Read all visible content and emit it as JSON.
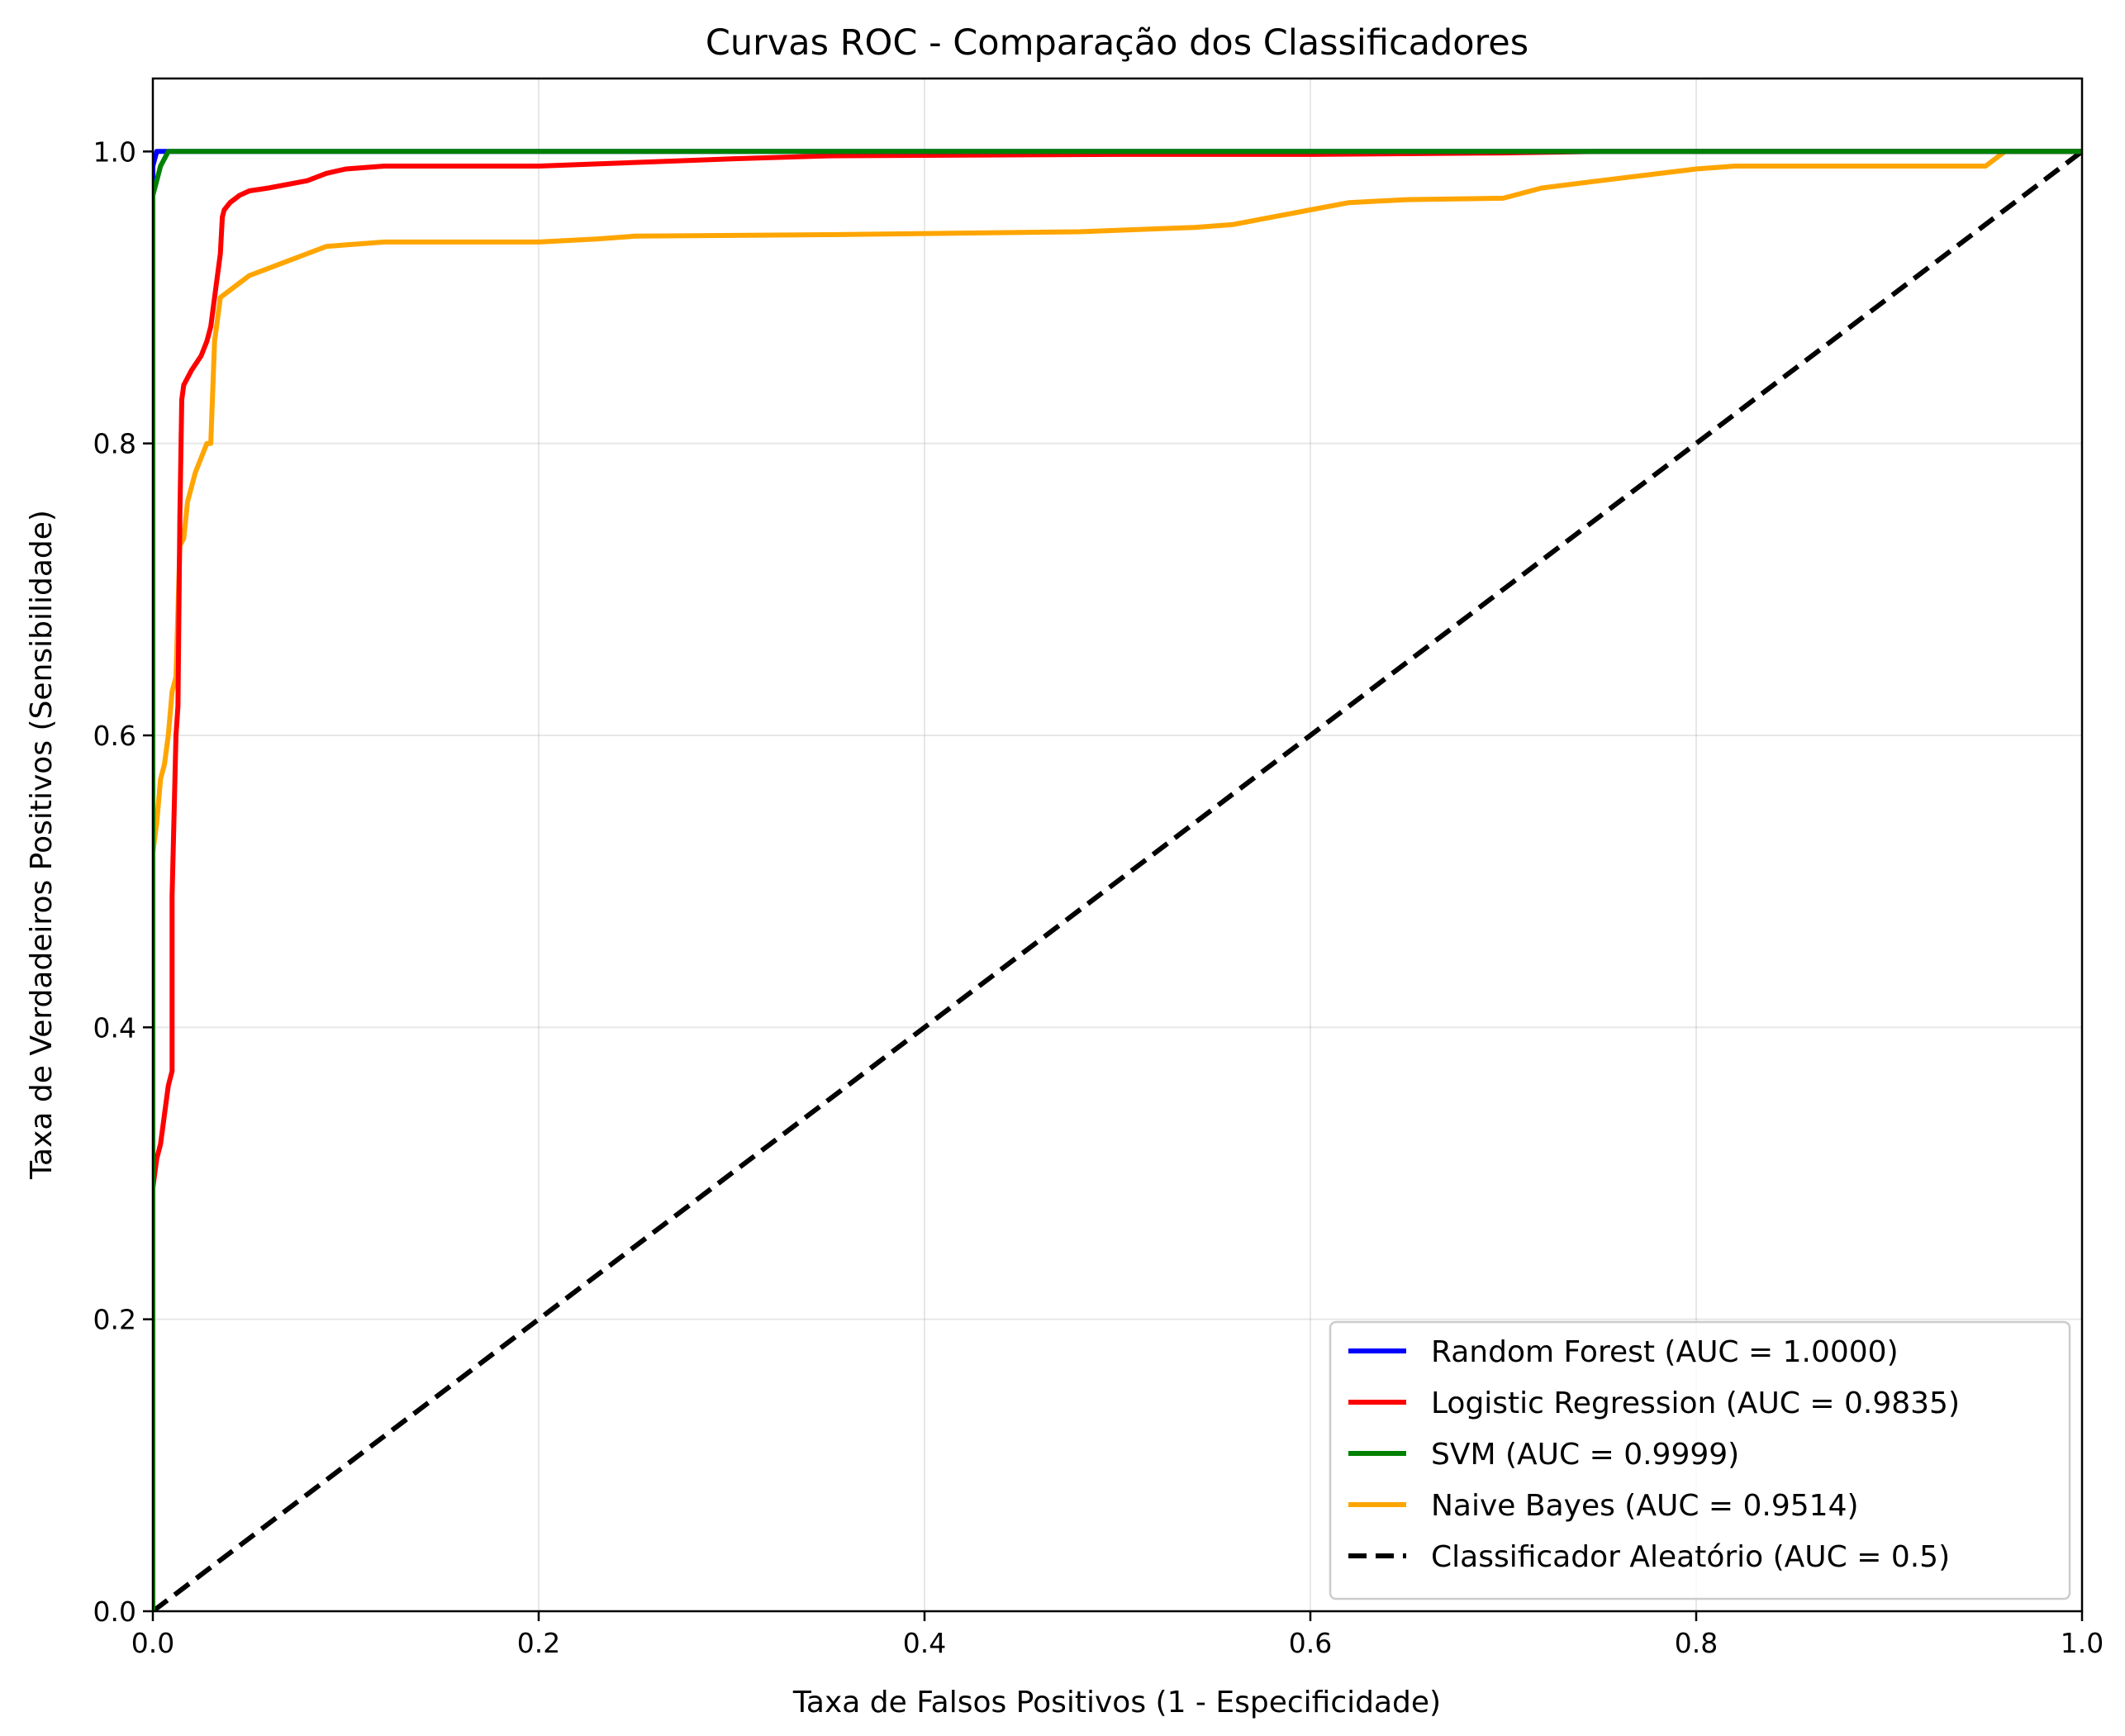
{
  "chart_data": {
    "type": "line",
    "title": "Curvas ROC - Comparação dos Classificadores",
    "xlabel": "Taxa de Falsos Positivos (1 - Especificidade)",
    "ylabel": "Taxa de Verdadeiros Positivos (Sensibilidade)",
    "xlim": [
      0.0,
      1.0
    ],
    "ylim": [
      0.0,
      1.05
    ],
    "xticks": [
      "0.0",
      "0.2",
      "0.4",
      "0.6",
      "0.8",
      "1.0"
    ],
    "yticks": [
      "0.0",
      "0.2",
      "0.4",
      "0.6",
      "0.8",
      "1.0"
    ],
    "grid": true,
    "legend_position": "lower-right",
    "series": [
      {
        "name": "Random Forest (AUC = 1.0000)",
        "color": "#0000ff",
        "style": "solid",
        "x": [
          0.0,
          0.0,
          0.002,
          1.0
        ],
        "y": [
          0.0,
          0.99,
          1.0,
          1.0
        ]
      },
      {
        "name": "Logistic Regression (AUC = 0.9835)",
        "color": "#ff0000",
        "style": "solid",
        "x": [
          0.0,
          0.0,
          0.002,
          0.004,
          0.006,
          0.008,
          0.01,
          0.01,
          0.012,
          0.013,
          0.014,
          0.015,
          0.016,
          0.016,
          0.02,
          0.025,
          0.028,
          0.03,
          0.032,
          0.035,
          0.036,
          0.037,
          0.04,
          0.045,
          0.05,
          0.06,
          0.08,
          0.09,
          0.1,
          0.12,
          0.2,
          0.3,
          0.35,
          0.5,
          0.6,
          0.7,
          0.75,
          1.0
        ],
        "y": [
          0.0,
          0.29,
          0.31,
          0.32,
          0.34,
          0.36,
          0.37,
          0.49,
          0.6,
          0.62,
          0.75,
          0.83,
          0.84,
          0.84,
          0.85,
          0.86,
          0.87,
          0.88,
          0.9,
          0.93,
          0.955,
          0.96,
          0.965,
          0.97,
          0.973,
          0.975,
          0.98,
          0.985,
          0.988,
          0.99,
          0.99,
          0.995,
          0.997,
          0.998,
          0.998,
          0.999,
          1.0,
          1.0
        ]
      },
      {
        "name": "SVM (AUC = 0.9999)",
        "color": "#008000",
        "style": "solid",
        "x": [
          0.0,
          0.0,
          0.002,
          0.004,
          0.006,
          0.008,
          1.0
        ],
        "y": [
          0.0,
          0.97,
          0.98,
          0.99,
          0.995,
          1.0,
          1.0
        ]
      },
      {
        "name": "Naive Bayes (AUC = 0.9514)",
        "color": "#ffa500",
        "style": "solid",
        "x": [
          0.0,
          0.0,
          0.002,
          0.004,
          0.006,
          0.008,
          0.01,
          0.012,
          0.014,
          0.016,
          0.018,
          0.02,
          0.022,
          0.025,
          0.028,
          0.03,
          0.032,
          0.033,
          0.035,
          0.04,
          0.045,
          0.05,
          0.06,
          0.07,
          0.08,
          0.09,
          0.1,
          0.12,
          0.15,
          0.2,
          0.23,
          0.25,
          0.35,
          0.48,
          0.54,
          0.56,
          0.58,
          0.6,
          0.62,
          0.65,
          0.7,
          0.72,
          0.75,
          0.8,
          0.82,
          0.95,
          0.96,
          1.0
        ],
        "y": [
          0.0,
          0.52,
          0.54,
          0.57,
          0.58,
          0.6,
          0.63,
          0.64,
          0.73,
          0.735,
          0.76,
          0.77,
          0.78,
          0.79,
          0.8,
          0.8,
          0.87,
          0.88,
          0.9,
          0.905,
          0.91,
          0.915,
          0.92,
          0.925,
          0.93,
          0.935,
          0.936,
          0.938,
          0.938,
          0.938,
          0.94,
          0.942,
          0.943,
          0.945,
          0.948,
          0.95,
          0.955,
          0.96,
          0.965,
          0.967,
          0.968,
          0.975,
          0.98,
          0.988,
          0.99,
          0.99,
          1.0,
          1.0
        ]
      },
      {
        "name": "Classificador Aleatório (AUC = 0.5)",
        "color": "#000000",
        "style": "dashed",
        "x": [
          0.0,
          1.0
        ],
        "y": [
          0.0,
          1.0
        ]
      }
    ]
  }
}
